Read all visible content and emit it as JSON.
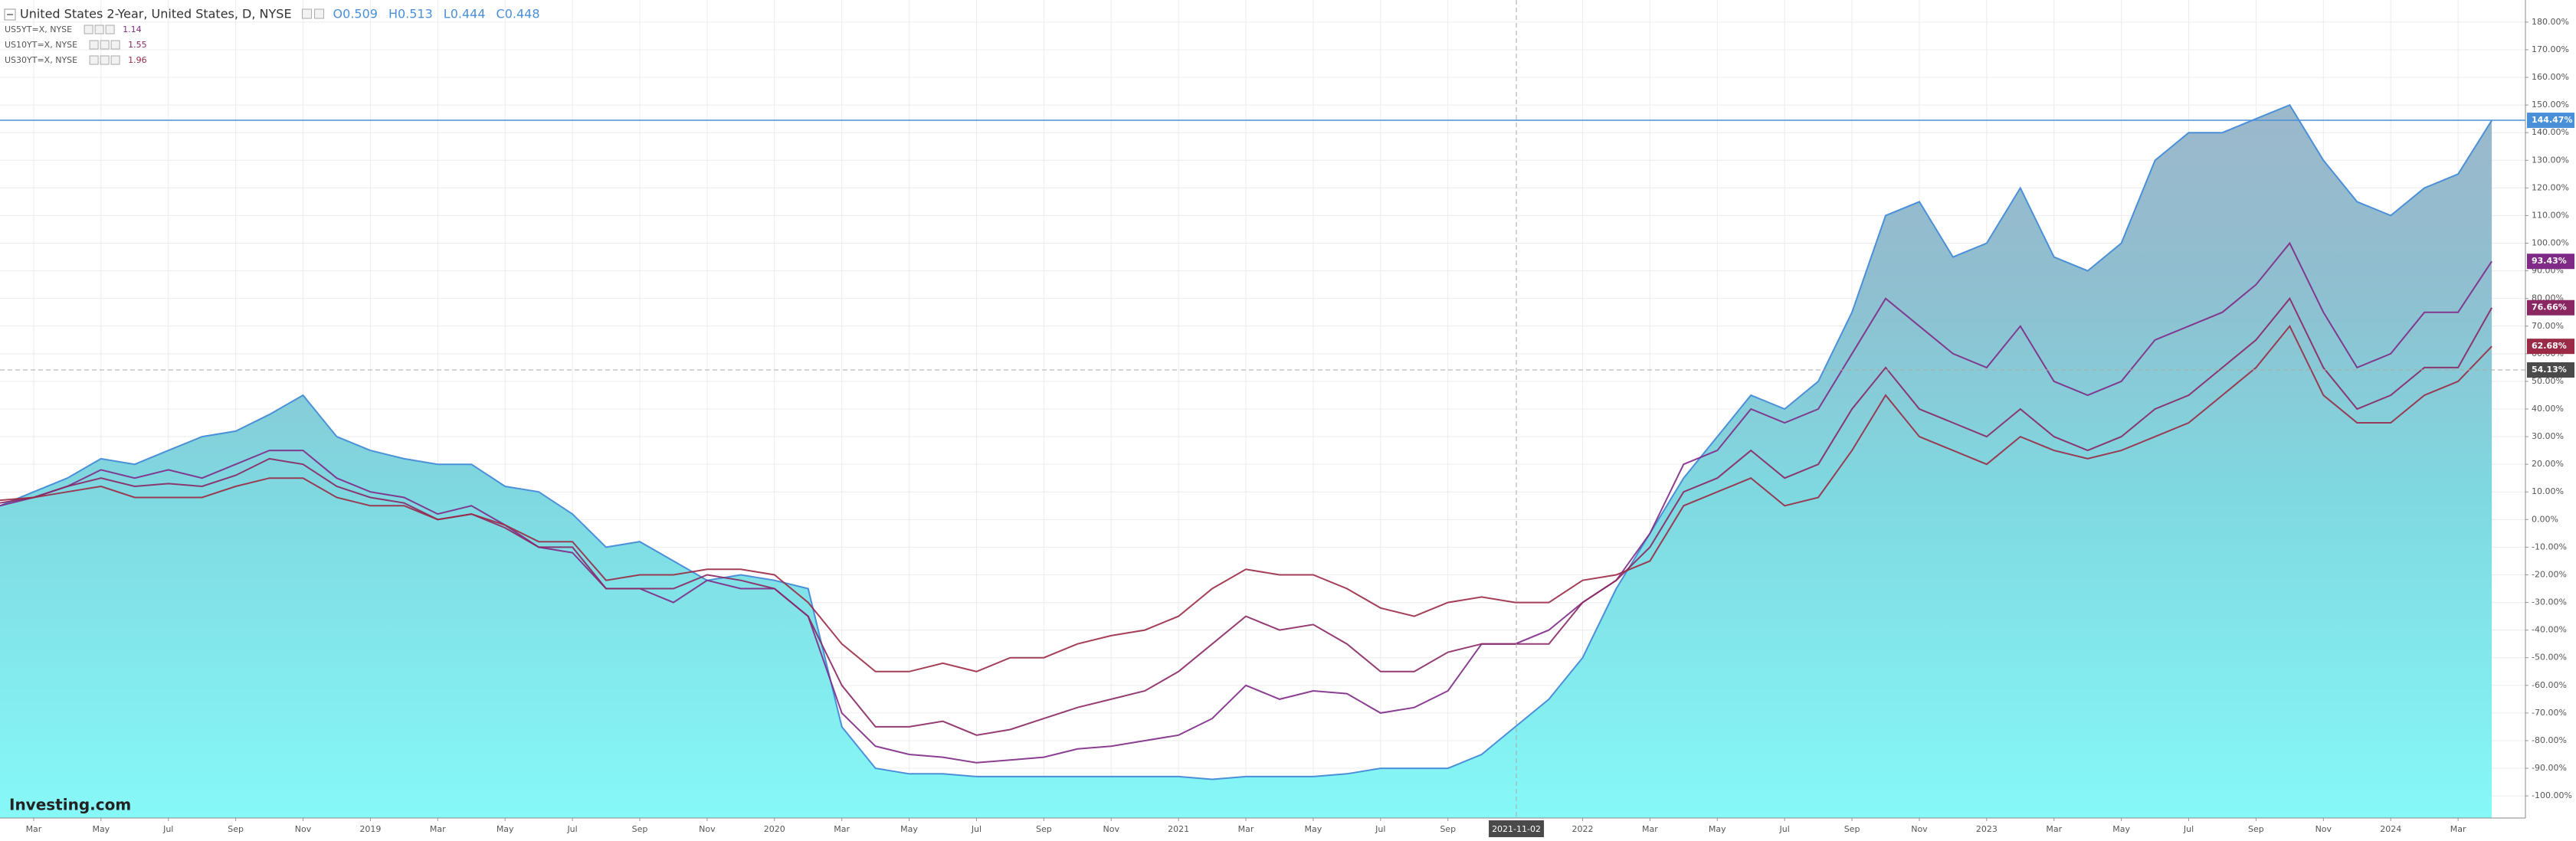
{
  "chart_data": {
    "type": "area-lines",
    "ohlc": [
      "O0.509",
      "H0.513",
      "L0.444",
      "C0.448"
    ],
    "watermark": "Investing.com",
    "xlim": [
      "2018-02",
      "2024-05"
    ],
    "ylim": [
      -108,
      188
    ],
    "grid": true,
    "x": [
      "2018-02",
      "2018-03",
      "2018-04",
      "2018-05",
      "2018-06",
      "2018-07",
      "2018-08",
      "2018-09",
      "2018-10",
      "2018-11",
      "2018-12",
      "2019-01",
      "2019-02",
      "2019-03",
      "2019-04",
      "2019-05",
      "2019-06",
      "2019-07",
      "2019-08",
      "2019-09",
      "2019-10",
      "2019-11",
      "2019-12",
      "2020-01",
      "2020-02",
      "2020-03",
      "2020-04",
      "2020-05",
      "2020-06",
      "2020-07",
      "2020-08",
      "2020-09",
      "2020-10",
      "2020-11",
      "2020-12",
      "2021-01",
      "2021-02",
      "2021-03",
      "2021-04",
      "2021-05",
      "2021-06",
      "2021-07",
      "2021-08",
      "2021-09",
      "2021-10",
      "2021-11",
      "2021-12",
      "2022-01",
      "2022-02",
      "2022-03",
      "2022-04",
      "2022-05",
      "2022-06",
      "2022-07",
      "2022-08",
      "2022-09",
      "2022-10",
      "2022-11",
      "2022-12",
      "2023-01",
      "2023-02",
      "2023-03",
      "2023-04",
      "2023-05",
      "2023-06",
      "2023-07",
      "2023-08",
      "2023-09",
      "2023-10",
      "2023-11",
      "2023-12",
      "2024-01",
      "2024-02",
      "2024-03",
      "2024-04"
    ],
    "series": [
      {
        "name": "United States 2-Year, United States, D, NYSE",
        "kind": "area",
        "color": "#4a90d9",
        "last_value_label": "144.47%",
        "values": [
          5,
          10,
          15,
          22,
          20,
          25,
          30,
          32,
          38,
          45,
          30,
          25,
          22,
          20,
          20,
          12,
          10,
          2,
          -10,
          -8,
          -15,
          -22,
          -20,
          -22,
          -25,
          -75,
          -90,
          -92,
          -92,
          -93,
          -93,
          -93,
          -93,
          -93,
          -93,
          -93,
          -94,
          -93,
          -93,
          -93,
          -92,
          -90,
          -90,
          -90,
          -85,
          -75,
          -65,
          -50,
          -25,
          -5,
          15,
          30,
          45,
          40,
          50,
          75,
          110,
          115,
          95,
          100,
          120,
          95,
          90,
          100,
          130,
          140,
          140,
          145,
          150,
          130,
          115,
          110,
          120,
          125,
          144.47
        ]
      },
      {
        "name": "US5YT=X, NYSE",
        "kind": "line",
        "color": "#7e2a86",
        "legend_value": "1.14",
        "last_value_label": "93.43%",
        "values": [
          5,
          8,
          12,
          18,
          15,
          18,
          15,
          20,
          25,
          25,
          15,
          10,
          8,
          2,
          5,
          -2,
          -10,
          -12,
          -25,
          -25,
          -30,
          -22,
          -25,
          -25,
          -35,
          -70,
          -82,
          -85,
          -86,
          -88,
          -87,
          -86,
          -83,
          -82,
          -80,
          -78,
          -72,
          -60,
          -65,
          -62,
          -63,
          -70,
          -68,
          -62,
          -45,
          -45,
          -40,
          -30,
          -22,
          -5,
          20,
          25,
          40,
          35,
          40,
          60,
          80,
          70,
          60,
          55,
          70,
          50,
          45,
          50,
          65,
          70,
          75,
          85,
          100,
          75,
          55,
          60,
          75,
          75,
          93.43
        ]
      },
      {
        "name": "US10YT=X, NYSE",
        "kind": "line",
        "color": "#8a2763",
        "legend_value": "1.55",
        "last_value_label": "76.66%",
        "values": [
          6,
          8,
          12,
          15,
          12,
          13,
          12,
          16,
          22,
          20,
          12,
          8,
          6,
          0,
          2,
          -3,
          -10,
          -10,
          -25,
          -25,
          -25,
          -20,
          -22,
          -25,
          -35,
          -60,
          -75,
          -75,
          -73,
          -78,
          -76,
          -72,
          -68,
          -65,
          -62,
          -55,
          -45,
          -35,
          -40,
          -38,
          -45,
          -55,
          -55,
          -48,
          -45,
          -45,
          -45,
          -30,
          -22,
          -10,
          10,
          15,
          25,
          15,
          20,
          40,
          55,
          40,
          35,
          30,
          40,
          30,
          25,
          30,
          40,
          45,
          55,
          65,
          80,
          55,
          40,
          45,
          55,
          55,
          76.66
        ]
      },
      {
        "name": "US30YT=X, NYSE",
        "kind": "line",
        "color": "#9a2a45",
        "legend_value": "1.96",
        "last_value_label": "62.68%",
        "values": [
          7,
          8,
          10,
          12,
          8,
          8,
          8,
          12,
          15,
          15,
          8,
          5,
          5,
          0,
          2,
          -2,
          -8,
          -8,
          -22,
          -20,
          -20,
          -18,
          -18,
          -20,
          -30,
          -45,
          -55,
          -55,
          -52,
          -55,
          -50,
          -50,
          -45,
          -42,
          -40,
          -35,
          -25,
          -18,
          -20,
          -20,
          -25,
          -32,
          -35,
          -30,
          -28,
          -30,
          -30,
          -22,
          -20,
          -15,
          5,
          10,
          15,
          5,
          8,
          25,
          45,
          30,
          25,
          20,
          30,
          25,
          22,
          25,
          30,
          35,
          45,
          55,
          70,
          45,
          35,
          35,
          45,
          50,
          62.68
        ]
      }
    ],
    "yticks": [
      {
        "value": 180,
        "label": "180.00%"
      },
      {
        "value": 170,
        "label": "170.00%"
      },
      {
        "value": 160,
        "label": "160.00%"
      },
      {
        "value": 150,
        "label": "150.00%"
      },
      {
        "value": 140,
        "label": "140.00%"
      },
      {
        "value": 130,
        "label": "130.00%"
      },
      {
        "value": 120,
        "label": "120.00%"
      },
      {
        "value": 110,
        "label": "110.00%"
      },
      {
        "value": 100,
        "label": "100.00%"
      },
      {
        "value": 90,
        "label": "90.00%"
      },
      {
        "value": 80,
        "label": "80.00%"
      },
      {
        "value": 70,
        "label": "70.00%"
      },
      {
        "value": 60,
        "label": "60.00%"
      },
      {
        "value": 50,
        "label": "50.00%"
      },
      {
        "value": 40,
        "label": "40.00%"
      },
      {
        "value": 30,
        "label": "30.00%"
      },
      {
        "value": 20,
        "label": "20.00%"
      },
      {
        "value": 10,
        "label": "10.00%"
      },
      {
        "value": 0,
        "label": "0.00%"
      },
      {
        "value": -10,
        "label": "-10.00%"
      },
      {
        "value": -20,
        "label": "-20.00%"
      },
      {
        "value": -30,
        "label": "-30.00%"
      },
      {
        "value": -40,
        "label": "-40.00%"
      },
      {
        "value": -50,
        "label": "-50.00%"
      },
      {
        "value": -60,
        "label": "-60.00%"
      },
      {
        "value": -70,
        "label": "-70.00%"
      },
      {
        "value": -80,
        "label": "-80.00%"
      },
      {
        "value": -90,
        "label": "-90.00%"
      },
      {
        "value": -100,
        "label": "-100.00%"
      }
    ],
    "xticks": [
      {
        "value": "2018-03",
        "label": "Mar"
      },
      {
        "value": "2018-05",
        "label": "May"
      },
      {
        "value": "2018-07",
        "label": "Jul"
      },
      {
        "value": "2018-09",
        "label": "Sep"
      },
      {
        "value": "2018-11",
        "label": "Nov"
      },
      {
        "value": "2019-01",
        "label": "2019"
      },
      {
        "value": "2019-03",
        "label": "Mar"
      },
      {
        "value": "2019-05",
        "label": "May"
      },
      {
        "value": "2019-07",
        "label": "Jul"
      },
      {
        "value": "2019-09",
        "label": "Sep"
      },
      {
        "value": "2019-11",
        "label": "Nov"
      },
      {
        "value": "2020-01",
        "label": "2020"
      },
      {
        "value": "2020-03",
        "label": "Mar"
      },
      {
        "value": "2020-05",
        "label": "May"
      },
      {
        "value": "2020-07",
        "label": "Jul"
      },
      {
        "value": "2020-09",
        "label": "Sep"
      },
      {
        "value": "2020-11",
        "label": "Nov"
      },
      {
        "value": "2021-01",
        "label": "2021"
      },
      {
        "value": "2021-03",
        "label": "Mar"
      },
      {
        "value": "2021-05",
        "label": "May"
      },
      {
        "value": "2021-07",
        "label": "Jul"
      },
      {
        "value": "2021-09",
        "label": "Sep"
      },
      {
        "value": "2022-01",
        "label": "2022"
      },
      {
        "value": "2022-03",
        "label": "Mar"
      },
      {
        "value": "2022-05",
        "label": "May"
      },
      {
        "value": "2022-07",
        "label": "Jul"
      },
      {
        "value": "2022-09",
        "label": "Sep"
      },
      {
        "value": "2022-11",
        "label": "Nov"
      },
      {
        "value": "2023-01",
        "label": "2023"
      },
      {
        "value": "2023-03",
        "label": "Mar"
      },
      {
        "value": "2023-05",
        "label": "May"
      },
      {
        "value": "2023-07",
        "label": "Jul"
      },
      {
        "value": "2023-09",
        "label": "Sep"
      },
      {
        "value": "2023-11",
        "label": "Nov"
      },
      {
        "value": "2024-01",
        "label": "2024"
      },
      {
        "value": "2024-03",
        "label": "Mar"
      }
    ],
    "crosshair": {
      "x": "2021-11-02",
      "x_label": "2021-11-02",
      "y": 54.13,
      "y_label": "54.13%"
    }
  }
}
